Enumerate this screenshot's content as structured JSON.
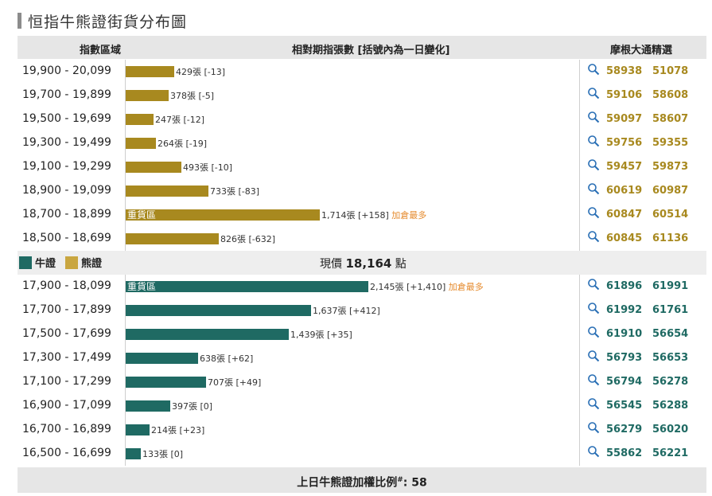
{
  "title": "恒指牛熊證街貨分布圖",
  "header": {
    "col_range": "指數區域",
    "col_bar": "相對期指張數 [括號內為一日變化]",
    "col_picks": "摩根大通精選"
  },
  "legend": {
    "bull": "牛證",
    "bear": "熊證",
    "bull_color": "#1f6a63",
    "bear_color": "#a8891f"
  },
  "spot": {
    "prefix": "現價",
    "value": "18,164",
    "suffix": "點"
  },
  "heavy_label": "重貨區",
  "footer": {
    "text": "上日牛熊證加權比例",
    "mark": "#",
    "value": ": 58"
  },
  "chart_data": {
    "type": "bar",
    "orientation": "horizontal",
    "title": "恒指牛熊證街貨分布圖",
    "value_unit": "張",
    "x_max": 2145,
    "bear": [
      {
        "range": "19,900 - 20,099",
        "value": 429,
        "label": "429張 [-13]",
        "note": "",
        "heavy": false,
        "codes": [
          "58938",
          "51078"
        ]
      },
      {
        "range": "19,700 - 19,899",
        "value": 378,
        "label": "378張 [-5]",
        "note": "",
        "heavy": false,
        "codes": [
          "59106",
          "58608"
        ]
      },
      {
        "range": "19,500 - 19,699",
        "value": 247,
        "label": "247張 [-12]",
        "note": "",
        "heavy": false,
        "codes": [
          "59097",
          "58607"
        ]
      },
      {
        "range": "19,300 - 19,499",
        "value": 264,
        "label": "264張 [-19]",
        "note": "",
        "heavy": false,
        "codes": [
          "59756",
          "59355"
        ]
      },
      {
        "range": "19,100 - 19,299",
        "value": 493,
        "label": "493張 [-10]",
        "note": "",
        "heavy": false,
        "codes": [
          "59457",
          "59873"
        ]
      },
      {
        "range": "18,900 - 19,099",
        "value": 733,
        "label": "733張 [-83]",
        "note": "",
        "heavy": false,
        "codes": [
          "60619",
          "60987"
        ]
      },
      {
        "range": "18,700 - 18,899",
        "value": 1714,
        "label": "1,714張 [+158]",
        "note": "加倉最多",
        "heavy": true,
        "codes": [
          "60847",
          "60514"
        ]
      },
      {
        "range": "18,500 - 18,699",
        "value": 826,
        "label": "826張 [-632]",
        "note": "",
        "heavy": false,
        "codes": [
          "60845",
          "61136"
        ]
      }
    ],
    "bull": [
      {
        "range": "17,900 - 18,099",
        "value": 2145,
        "label": "2,145張 [+1,410]",
        "note": "加倉最多",
        "heavy": true,
        "codes": [
          "61896",
          "61991"
        ]
      },
      {
        "range": "17,700 - 17,899",
        "value": 1637,
        "label": "1,637張 [+412]",
        "note": "",
        "heavy": false,
        "codes": [
          "61992",
          "61761"
        ]
      },
      {
        "range": "17,500 - 17,699",
        "value": 1439,
        "label": "1,439張 [+35]",
        "note": "",
        "heavy": false,
        "codes": [
          "61910",
          "56654"
        ]
      },
      {
        "range": "17,300 - 17,499",
        "value": 638,
        "label": "638張 [+62]",
        "note": "",
        "heavy": false,
        "codes": [
          "56793",
          "56653"
        ]
      },
      {
        "range": "17,100 - 17,299",
        "value": 707,
        "label": "707張 [+49]",
        "note": "",
        "heavy": false,
        "codes": [
          "56794",
          "56278"
        ]
      },
      {
        "range": "16,900 - 17,099",
        "value": 397,
        "label": "397張 [0]",
        "note": "",
        "heavy": false,
        "codes": [
          "56545",
          "56288"
        ]
      },
      {
        "range": "16,700 - 16,899",
        "value": 214,
        "label": "214張 [+23]",
        "note": "",
        "heavy": false,
        "codes": [
          "56279",
          "56020"
        ]
      },
      {
        "range": "16,500 - 16,699",
        "value": 133,
        "label": "133張 [0]",
        "note": "",
        "heavy": false,
        "codes": [
          "55862",
          "56221"
        ]
      }
    ]
  }
}
